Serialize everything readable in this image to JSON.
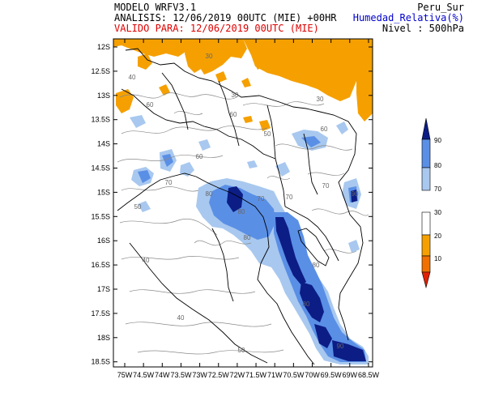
{
  "header": {
    "model": "MODELO WRFV3.1",
    "analysis": "ANALISIS: 12/06/2019 00UTC (MIE) +00HR",
    "valid": "VALIDO PARA: 12/06/2019 00UTC (MIE)",
    "region": "Peru_Sur",
    "variable": "Humedad_Relativa(%)",
    "level": "Nivel : 500hPa"
  },
  "colors": {
    "header_text": "#000000",
    "valid_text": "#e00000",
    "variable_text": "#0000cc",
    "dry": "#f5a000",
    "humid_light": "#a8c8ef",
    "humid_mid": "#5a8fe6",
    "humid_dark": "#0c1d86",
    "contour": "#8a8a8a",
    "border": "#000000"
  },
  "axes": {
    "y_ticks": [
      "12S",
      "12.5S",
      "13S",
      "13.5S",
      "14S",
      "14.5S",
      "15S",
      "15.5S",
      "16S",
      "16.5S",
      "17S",
      "17.5S",
      "18S",
      "18.5S"
    ],
    "x_ticks": [
      "75W",
      "74.5W",
      "74W",
      "73.5W",
      "73W",
      "72.5W",
      "72W",
      "71.5W",
      "71W",
      "70.5W",
      "70W",
      "69.5W",
      "69W",
      "68.5W"
    ]
  },
  "colorbar": {
    "labels": [
      "90",
      "80",
      "70",
      "30",
      "20",
      "10"
    ],
    "bins": [
      {
        "label": "> 90",
        "color": "#0c1d86"
      },
      {
        "label": "80-90",
        "color": "#5a8fe6"
      },
      {
        "label": "70-80",
        "color": "#a8c8ef"
      },
      {
        "label": "30-70",
        "color": "#ffffff"
      },
      {
        "label": "20-30",
        "color": "#f5a000"
      },
      {
        "label": "10-20",
        "color": "#f07000"
      },
      {
        "label": "< 10",
        "color": "#e02000"
      }
    ]
  },
  "contour_labels": [
    "30",
    "30",
    "30",
    "40",
    "40",
    "40",
    "50",
    "50",
    "50",
    "60",
    "60",
    "60",
    "60",
    "70",
    "70",
    "70",
    "70",
    "80",
    "80",
    "80",
    "80",
    "80",
    "90",
    "90"
  ]
}
